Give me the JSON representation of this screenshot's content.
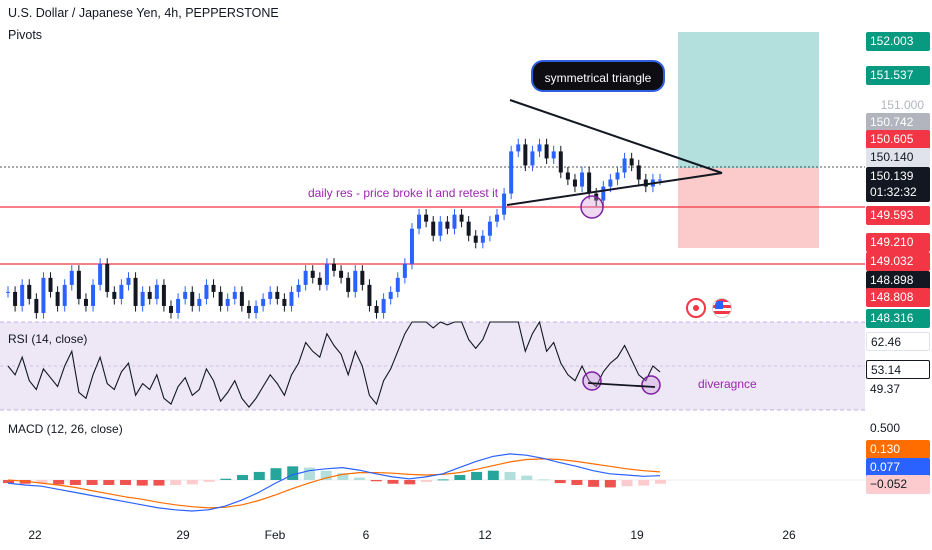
{
  "header": {
    "title": "U.S. Dollar / Japanese Yen, 4h, PEPPERSTONE",
    "indicator": "Pivots"
  },
  "annotations": {
    "pattern_label": "symmetrical triangle",
    "support_note": "daily res - price broke it and retest it",
    "divergence_note": "diveragnce"
  },
  "price_axis": {
    "hidden_tick": "151.000",
    "labels": [
      {
        "value": "152.003",
        "color": "#089981"
      },
      {
        "value": "151.537",
        "color": "#089981"
      },
      {
        "value": "150.742",
        "color": "#b2b5be"
      },
      {
        "value": "150.605",
        "color": "#f23645"
      },
      {
        "value": "150.140",
        "color": "#e0e3eb"
      },
      {
        "value": "150.139",
        "color": "#131722"
      },
      {
        "value": "01:32:32",
        "color": "#131722"
      },
      {
        "value": "149.593",
        "color": "#f23645"
      },
      {
        "value": "149.210",
        "color": "#f23645"
      },
      {
        "value": "149.032",
        "color": "#f23645"
      },
      {
        "value": "148.898",
        "color": "#131722"
      },
      {
        "value": "148.808",
        "color": "#f23645"
      },
      {
        "value": "148.316",
        "color": "#089981"
      }
    ]
  },
  "rsi": {
    "label": "RSI (14, close)",
    "axis": [
      {
        "value": "62.46",
        "color": "#ffffff"
      },
      {
        "value": "53.14",
        "color": "#131722"
      },
      {
        "value": "49.37",
        "color": "#ffffff"
      }
    ]
  },
  "macd": {
    "label": "MACD (12, 26, close)",
    "axis": [
      {
        "value": "0.500",
        "color": "#ffffff"
      },
      {
        "value": "0.130",
        "color": "#ff6d00"
      },
      {
        "value": "0.077",
        "color": "#2962ff"
      },
      {
        "value": "−0.052",
        "color": "#fccbcd"
      }
    ]
  },
  "time_axis": [
    "22",
    "29",
    "Feb",
    "6",
    "12",
    "19",
    "26"
  ],
  "colors": {
    "up": "#2962ff",
    "down": "#131722",
    "resistance": "#f23645",
    "rsi_band": "#7e57c2",
    "macd_line": "#2962ff",
    "signal_line": "#ff6d00"
  },
  "chart_data": {
    "type": "candlestick",
    "instrument": "USDJPY",
    "timeframe": "4h",
    "price_range": [
      148.1,
      152.2
    ],
    "levels": [
      149.593,
      148.898
    ],
    "last_price": 150.139,
    "position": {
      "entry": 150.14,
      "target": 152.003,
      "stop": 149.21
    },
    "triangle": {
      "upper": [
        [
          150.95,
          150.14
        ]
      ],
      "lower": [
        [
          149.62,
          150.14
        ]
      ]
    },
    "close_series": [
      148.5,
      148.3,
      148.6,
      148.4,
      148.2,
      148.7,
      148.5,
      148.3,
      148.6,
      148.8,
      148.4,
      148.3,
      148.6,
      148.9,
      148.5,
      148.4,
      148.6,
      148.7,
      148.3,
      148.5,
      148.4,
      148.6,
      148.3,
      148.2,
      148.4,
      148.5,
      148.3,
      148.4,
      148.6,
      148.5,
      148.3,
      148.4,
      148.5,
      148.3,
      148.2,
      148.3,
      148.4,
      148.5,
      148.4,
      148.3,
      148.5,
      148.6,
      148.8,
      148.7,
      148.6,
      148.9,
      148.8,
      148.7,
      148.5,
      148.8,
      148.6,
      148.3,
      148.2,
      148.4,
      148.5,
      148.7,
      148.9,
      149.4,
      149.6,
      149.5,
      149.3,
      149.5,
      149.4,
      149.6,
      149.5,
      149.3,
      149.2,
      149.3,
      149.5,
      149.6,
      149.9,
      150.5,
      150.6,
      150.3,
      150.5,
      150.6,
      150.4,
      150.5,
      150.2,
      150.1,
      150.0,
      150.2,
      149.9,
      149.8,
      150.0,
      150.1,
      150.2,
      150.4,
      150.3,
      150.1,
      150.0,
      150.1,
      150.1
    ],
    "rsi_range": [
      40,
      70
    ],
    "rsi_series": [
      55,
      52,
      58,
      50,
      47,
      54,
      51,
      48,
      55,
      60,
      46,
      44,
      52,
      58,
      49,
      47,
      53,
      56,
      45,
      49,
      47,
      52,
      44,
      42,
      48,
      51,
      45,
      47,
      54,
      50,
      43,
      46,
      50,
      44,
      41,
      44,
      48,
      52,
      49,
      45,
      52,
      56,
      63,
      60,
      58,
      66,
      62,
      59,
      52,
      60,
      55,
      45,
      42,
      50,
      54,
      60,
      66,
      74,
      78,
      73,
      68,
      72,
      69,
      75,
      71,
      64,
      61,
      64,
      70,
      73,
      80,
      84,
      76,
      60,
      66,
      70,
      60,
      63,
      56,
      52,
      50,
      55,
      50,
      48,
      53,
      56,
      58,
      62,
      57,
      52,
      50,
      55,
      53
    ],
    "macd_range": [
      -0.7,
      0.75
    ],
    "macd_series": [
      -0.05,
      -0.08,
      -0.1,
      -0.15,
      -0.2,
      -0.25,
      -0.3,
      -0.35,
      -0.4,
      -0.45,
      -0.48,
      -0.5,
      -0.48,
      -0.42,
      -0.32,
      -0.2,
      -0.05,
      0.08,
      0.15,
      0.18,
      0.2,
      0.16,
      0.1,
      0.05,
      0.02,
      0.05,
      0.1,
      0.2,
      0.3,
      0.38,
      0.42,
      0.4,
      0.35,
      0.28,
      0.22,
      0.15,
      0.1,
      0.08,
      0.06,
      0.07
    ],
    "signal_series": [
      0.0,
      -0.02,
      -0.05,
      -0.08,
      -0.12,
      -0.17,
      -0.22,
      -0.27,
      -0.31,
      -0.36,
      -0.4,
      -0.43,
      -0.45,
      -0.44,
      -0.4,
      -0.33,
      -0.24,
      -0.14,
      -0.05,
      0.03,
      0.09,
      0.12,
      0.12,
      0.11,
      0.09,
      0.08,
      0.09,
      0.12,
      0.17,
      0.23,
      0.29,
      0.33,
      0.34,
      0.33,
      0.3,
      0.26,
      0.22,
      0.18,
      0.15,
      0.13
    ],
    "hist_series": [
      -0.05,
      -0.06,
      -0.05,
      -0.07,
      -0.08,
      -0.08,
      -0.08,
      -0.08,
      -0.09,
      -0.09,
      -0.08,
      -0.07,
      -0.03,
      0.02,
      0.08,
      0.13,
      0.19,
      0.22,
      0.2,
      0.15,
      0.11,
      0.04,
      -0.02,
      -0.06,
      -0.07,
      -0.03,
      0.01,
      0.08,
      0.13,
      0.15,
      0.13,
      0.07,
      0.01,
      -0.05,
      -0.08,
      -0.11,
      -0.12,
      -0.1,
      -0.09,
      -0.06
    ]
  }
}
